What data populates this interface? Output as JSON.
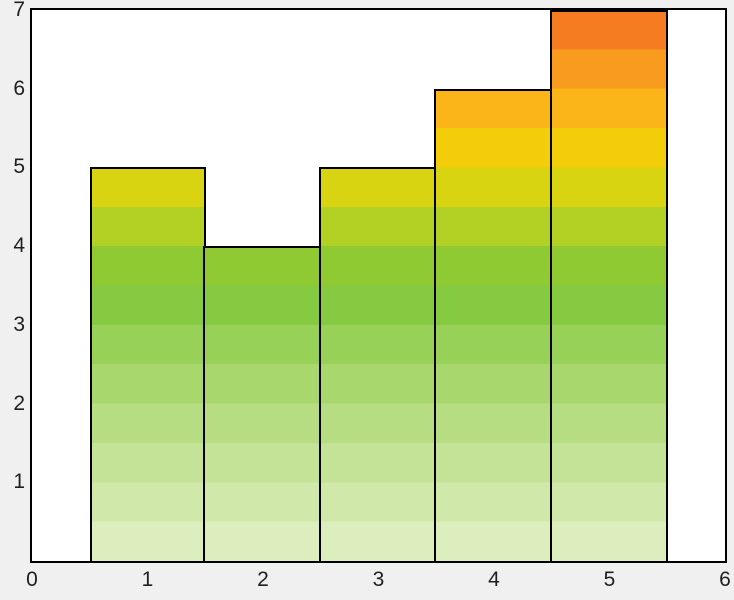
{
  "figure": {
    "background": "#f0f0f0",
    "plot_background": "#ffffff",
    "axis_color": "#000000",
    "tick_label_color": "#1f1f1f"
  },
  "chart_data": {
    "type": "bar",
    "title": "",
    "xlabel": "",
    "ylabel": "",
    "x": [
      1,
      2,
      3,
      4,
      5
    ],
    "values": [
      5,
      4,
      5,
      6,
      7
    ],
    "bar_width": 1,
    "xlim": [
      0,
      6
    ],
    "ylim": [
      0,
      7
    ],
    "xticks": [
      "0",
      "1",
      "2",
      "3",
      "4",
      "5",
      "6"
    ],
    "yticks": [
      "1",
      "2",
      "3",
      "4",
      "5",
      "6",
      "7"
    ],
    "grid": false,
    "legend": null,
    "bar_edge_color": "#000000",
    "gradient": {
      "orientation": "vertical",
      "band_height_units": 0.5,
      "bands_bottom_to_top": [
        "#dcedbe",
        "#d1e8ab",
        "#c5e397",
        "#b7dd82",
        "#a8d76d",
        "#97d157",
        "#86ca41",
        "#8fca33",
        "#b3d024",
        "#d9d411",
        "#f3cd0a",
        "#fbb518",
        "#f99b1e",
        "#f57c20"
      ]
    }
  }
}
